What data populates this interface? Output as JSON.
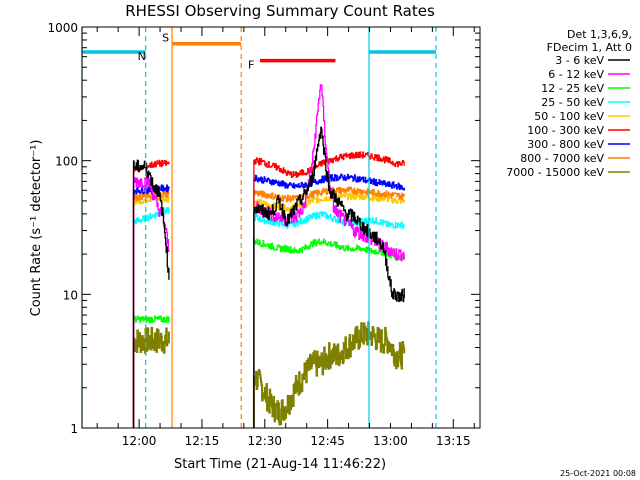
{
  "chart_data": {
    "type": "line",
    "title": "RHESSI Observing Summary Count Rates",
    "xlabel": "Start Time (21-Aug-14 11:46:22)",
    "ylabel": "Count Rate (s⁻¹ detector⁻¹)",
    "yscale": "log",
    "ylim": [
      1,
      1000
    ],
    "xlim_minutes_after_start": [
      0,
      95
    ],
    "x_tick_labels": [
      "12:00",
      "12:15",
      "12:30",
      "12:45",
      "13:00",
      "13:15"
    ],
    "x_tick_minutes_after_start": [
      13.63,
      28.63,
      43.63,
      58.63,
      73.63,
      88.63
    ],
    "y_tick_labels": [
      "1",
      "10",
      "100",
      "1000"
    ],
    "y_tick_values": [
      1,
      10,
      100,
      1000
    ],
    "legend": {
      "placement": "right",
      "header": [
        "Det 1,3,6,9,",
        "FDecim 1, Att 0"
      ]
    },
    "footer_stamp": "25-Oct-2021 00:08",
    "state_markers": [
      {
        "label": "N",
        "color": "#00c8e0",
        "level": 650,
        "bars_minutes": [
          [
            0,
            15.2
          ],
          [
            68.5,
            84.5
          ]
        ],
        "dashed_lines_minutes": [
          15.2,
          84.5
        ],
        "solid_lines_minutes": [
          0,
          68.5
        ]
      },
      {
        "label": "S",
        "color": "#ff8000",
        "level": 750,
        "bars_minutes": [
          [
            21.5,
            38.0
          ]
        ],
        "dashed_lines_minutes": [
          38.0
        ],
        "solid_lines_minutes": [
          21.5
        ]
      },
      {
        "label": "F",
        "color": "#ff0000",
        "level": 560,
        "bars_minutes": [
          [
            42.5,
            60.5
          ]
        ],
        "dashed_lines_minutes": [],
        "solid_lines_minutes": []
      }
    ],
    "data_gaps_minutes": [
      [
        20.8,
        41.0
      ]
    ],
    "series": [
      {
        "name": "3 - 6 keV",
        "color": "#000000",
        "x": [
          12.3,
          13,
          14,
          15,
          16,
          17,
          18,
          19,
          20,
          20.8,
          41,
          43,
          45,
          47,
          49,
          51,
          53,
          55,
          57,
          59,
          61,
          63,
          65,
          67,
          69,
          71,
          72,
          73,
          74,
          75,
          76,
          77
        ],
        "y": [
          90,
          90,
          90,
          90,
          80,
          65,
          60,
          45,
          25,
          12,
          45,
          42,
          40,
          50,
          35,
          45,
          55,
          75,
          180,
          60,
          50,
          40,
          38,
          32,
          28,
          25,
          22,
          15,
          10,
          10,
          9.5,
          10
        ]
      },
      {
        "name": "6 - 12 keV",
        "color": "#ff00ff",
        "x": [
          12.3,
          14,
          15,
          16,
          17,
          18,
          19,
          20,
          20.8,
          41,
          43,
          45,
          47,
          49,
          51,
          53,
          55,
          56,
          57,
          58,
          59,
          60,
          61,
          63,
          65,
          67,
          69,
          71,
          73,
          75,
          77
        ],
        "y": [
          70,
          70,
          70,
          70,
          55,
          45,
          40,
          30,
          20,
          45,
          42,
          40,
          38,
          36,
          38,
          45,
          100,
          200,
          400,
          150,
          70,
          45,
          40,
          35,
          30,
          28,
          26,
          23,
          22,
          20,
          20
        ]
      },
      {
        "name": "12 - 25 keV",
        "color": "#00ff00",
        "x": [
          12.3,
          14,
          16,
          18,
          20,
          20.8,
          41,
          43,
          45,
          47,
          49,
          51,
          53,
          55,
          57,
          59,
          61,
          63,
          65,
          67,
          69,
          71,
          73,
          75,
          77
        ],
        "y": [
          6.5,
          6.5,
          6.5,
          6.5,
          6.5,
          6.5,
          25,
          24,
          23,
          22,
          22,
          21,
          22,
          24,
          25,
          24,
          23,
          22,
          22,
          22,
          21,
          21,
          20,
          19,
          19
        ]
      },
      {
        "name": "25 - 50 keV",
        "color": "#00ffff",
        "x": [
          12.3,
          14,
          16,
          18,
          20,
          20.8,
          41,
          43,
          45,
          47,
          49,
          51,
          53,
          55,
          57,
          59,
          61,
          63,
          65,
          67,
          69,
          71,
          73,
          75,
          77
        ],
        "y": [
          35,
          36,
          38,
          40,
          42,
          42,
          38,
          36,
          35,
          34,
          33,
          34,
          36,
          38,
          40,
          38,
          36,
          35,
          34,
          35,
          36,
          35,
          33,
          33,
          33
        ]
      },
      {
        "name": "50 - 100 keV",
        "color": "#ffc800",
        "x": [
          12.3,
          14,
          16,
          18,
          20,
          20.8,
          41,
          43,
          45,
          47,
          49,
          51,
          53,
          55,
          57,
          59,
          61,
          63,
          65,
          67,
          69,
          71,
          73,
          75,
          77
        ],
        "y": [
          50,
          50,
          52,
          52,
          52,
          52,
          50,
          48,
          46,
          45,
          44,
          45,
          47,
          50,
          52,
          53,
          54,
          54,
          54,
          54,
          53,
          52,
          52,
          50,
          50
        ]
      },
      {
        "name": "100 - 300 keV",
        "color": "#ff0000",
        "x": [
          12.3,
          14,
          16,
          18,
          20,
          20.8,
          41,
          43,
          45,
          47,
          49,
          51,
          53,
          55,
          57,
          59,
          61,
          63,
          65,
          67,
          69,
          71,
          73,
          75,
          77
        ],
        "y": [
          85,
          88,
          92,
          95,
          95,
          95,
          100,
          98,
          92,
          88,
          80,
          78,
          82,
          85,
          95,
          100,
          105,
          108,
          110,
          110,
          108,
          105,
          100,
          95,
          95
        ]
      },
      {
        "name": "300 - 800 keV",
        "color": "#0000ff",
        "x": [
          12.3,
          14,
          16,
          18,
          20,
          20.8,
          41,
          43,
          45,
          47,
          49,
          51,
          53,
          55,
          57,
          59,
          61,
          63,
          65,
          67,
          69,
          71,
          73,
          75,
          77
        ],
        "y": [
          60,
          60,
          60,
          62,
          62,
          62,
          75,
          72,
          70,
          68,
          65,
          64,
          66,
          68,
          72,
          74,
          75,
          75,
          74,
          72,
          70,
          68,
          66,
          65,
          62
        ]
      },
      {
        "name": "800 - 7000 keV",
        "color": "#ff8000",
        "x": [
          12.3,
          14,
          16,
          18,
          20,
          20.8,
          41,
          43,
          45,
          47,
          49,
          51,
          53,
          55,
          57,
          59,
          61,
          63,
          65,
          67,
          69,
          71,
          73,
          75,
          77
        ],
        "y": [
          53,
          54,
          55,
          56,
          56,
          56,
          58,
          56,
          55,
          53,
          52,
          52,
          54,
          56,
          58,
          60,
          60,
          60,
          60,
          59,
          58,
          57,
          56,
          55,
          54
        ]
      },
      {
        "name": "7000 - 15000 keV",
        "color": "#808000",
        "x": [
          12.3,
          14,
          16,
          18,
          20,
          20.8,
          41,
          43,
          45,
          47,
          49,
          51,
          53,
          55,
          57,
          59,
          61,
          63,
          65,
          67,
          69,
          71,
          73,
          75,
          77
        ],
        "y": [
          4.5,
          4.5,
          4.5,
          4.5,
          4.5,
          4.5,
          2.5,
          2,
          1.5,
          1.3,
          1.5,
          2,
          2.5,
          3,
          3,
          3.5,
          3.5,
          4,
          4.5,
          5,
          5,
          4.5,
          4.5,
          3.5,
          3.5
        ]
      }
    ]
  }
}
